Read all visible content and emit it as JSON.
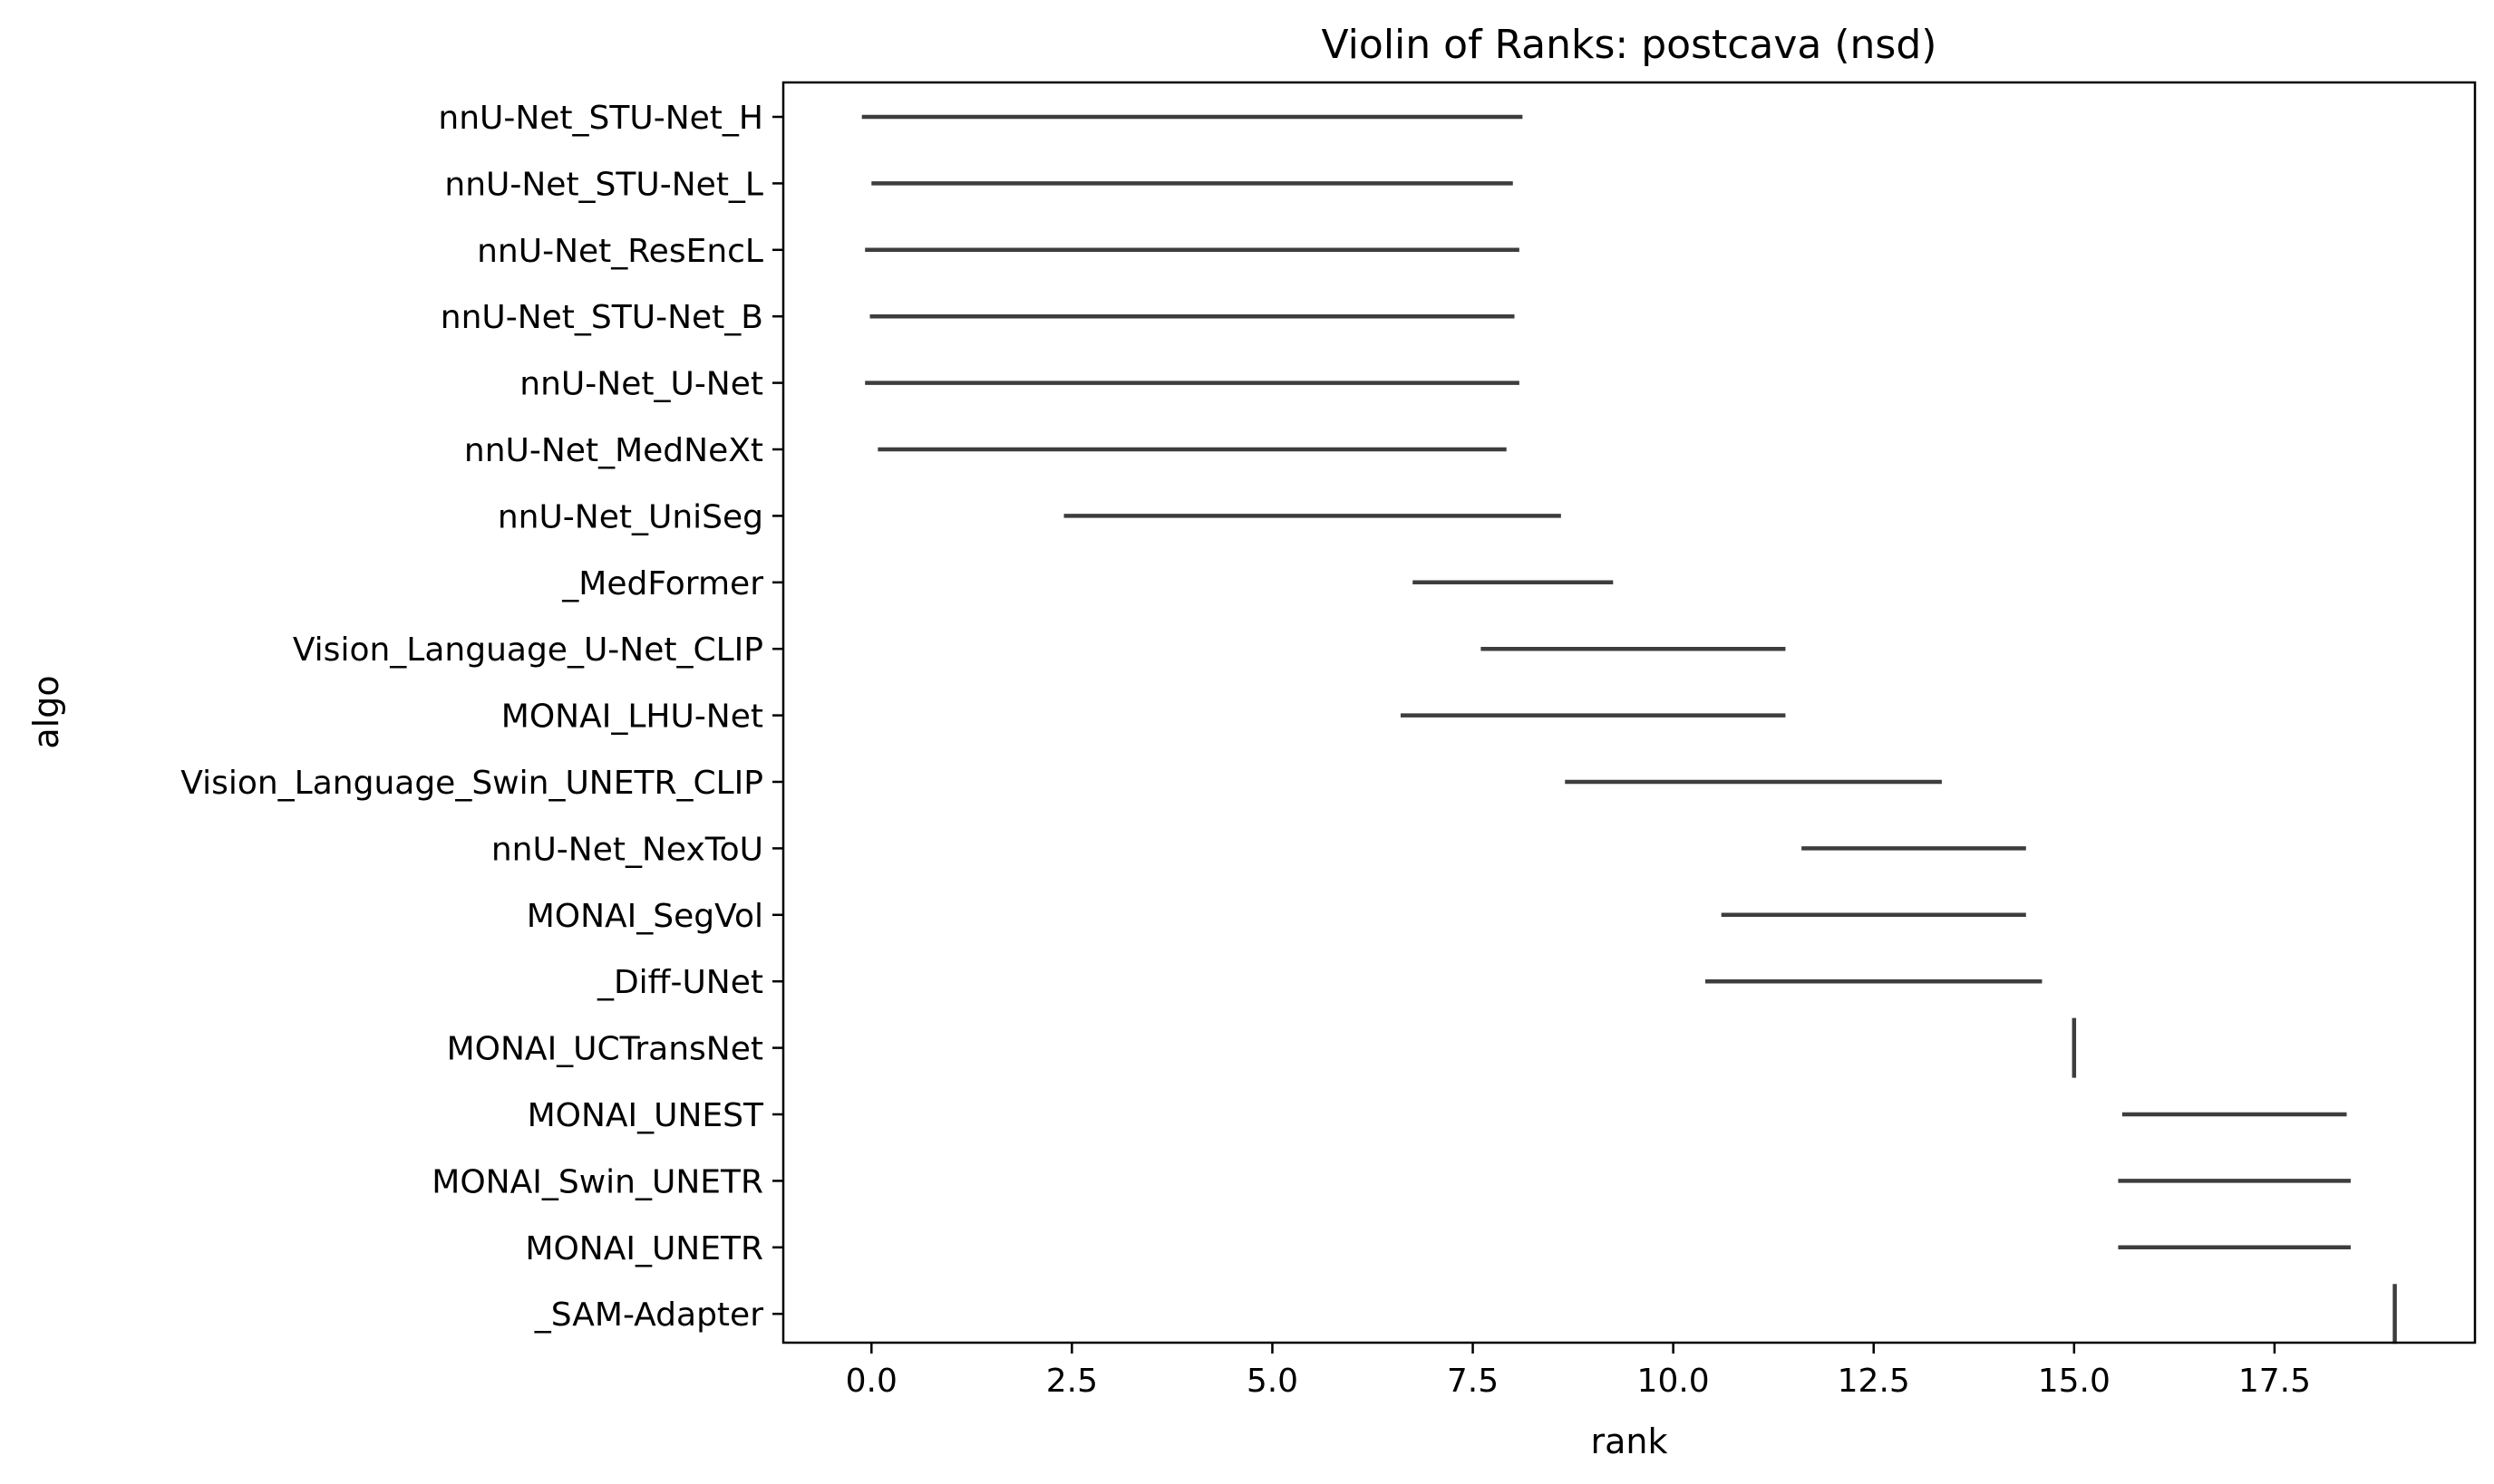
{
  "chart_data": {
    "type": "violin",
    "orientation": "horizontal",
    "title": "Violin of Ranks: postcava (nsd)",
    "xlabel": "rank",
    "ylabel": "algo",
    "xlim": [
      -1.1,
      20.0
    ],
    "xticks": [
      0.0,
      2.5,
      5.0,
      7.5,
      10.0,
      12.5,
      15.0,
      17.5
    ],
    "xtick_labels": [
      "0.0",
      "2.5",
      "5.0",
      "7.5",
      "10.0",
      "12.5",
      "15.0",
      "17.5"
    ],
    "grid": false,
    "line_color": "#3d3d3d",
    "categories": [
      "nnU-Net_STU-Net_H",
      "nnU-Net_STU-Net_L",
      "nnU-Net_ResEncL",
      "nnU-Net_STU-Net_B",
      "nnU-Net_U-Net",
      "nnU-Net_MedNeXt",
      "nnU-Net_UniSeg",
      "_MedFormer",
      "Vision_Language_U-Net_CLIP",
      "MONAI_LHU-Net",
      "Vision_Language_Swin_UNETR_CLIP",
      "nnU-Net_NexToU",
      "MONAI_SegVol",
      "_Diff-UNet",
      "MONAI_UCTransNet",
      "MONAI_UNEST",
      "MONAI_Swin_UNETR",
      "MONAI_UNETR",
      "_SAM-Adapter"
    ],
    "ranges": [
      [
        -0.12,
        8.12
      ],
      [
        0.0,
        8.0
      ],
      [
        -0.08,
        8.08
      ],
      [
        -0.02,
        8.02
      ],
      [
        -0.08,
        8.08
      ],
      [
        0.08,
        7.92
      ],
      [
        2.4,
        8.6
      ],
      [
        6.75,
        9.25
      ],
      [
        7.6,
        11.4
      ],
      [
        6.6,
        11.4
      ],
      [
        8.65,
        13.35
      ],
      [
        11.6,
        14.4
      ],
      [
        10.6,
        14.4
      ],
      [
        10.4,
        14.6
      ],
      [
        15.0,
        15.0
      ],
      [
        15.6,
        18.4
      ],
      [
        15.55,
        18.45
      ],
      [
        15.55,
        18.45
      ],
      [
        19.0,
        19.0
      ]
    ]
  }
}
